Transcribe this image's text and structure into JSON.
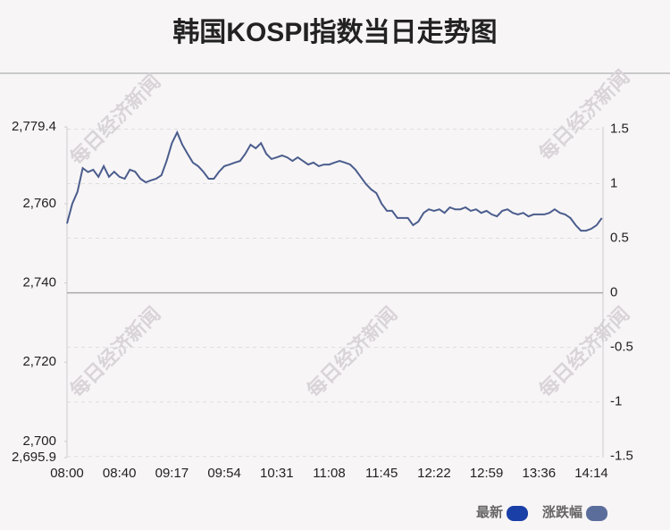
{
  "chart_data": {
    "type": "line",
    "title": "韩国KOSPI指数当日走势图",
    "watermark": "每日经济新闻",
    "categories": [
      "08:00",
      null,
      null,
      null,
      null,
      null,
      null,
      null,
      null,
      null,
      "08:40",
      null,
      null,
      null,
      null,
      null,
      null,
      null,
      null,
      null,
      "09:17",
      null,
      null,
      null,
      null,
      null,
      null,
      null,
      null,
      null,
      "09:54",
      null,
      null,
      null,
      null,
      null,
      null,
      null,
      null,
      null,
      "10:31",
      null,
      null,
      null,
      null,
      null,
      null,
      null,
      null,
      null,
      "11:08",
      null,
      null,
      null,
      null,
      null,
      null,
      null,
      null,
      null,
      "11:45",
      null,
      null,
      null,
      null,
      null,
      null,
      null,
      null,
      null,
      "12:22",
      null,
      null,
      null,
      null,
      null,
      null,
      null,
      null,
      null,
      "12:59",
      null,
      null,
      null,
      null,
      null,
      null,
      null,
      null,
      null,
      "13:36",
      null,
      null,
      null,
      null,
      null,
      null,
      null,
      null,
      null,
      "14:14",
      null,
      null
    ],
    "series": [
      {
        "color": "#4a5d8c",
        "values": [
          2755.0,
          2760.0,
          2763.0,
          2769.0,
          2768.0,
          2768.6,
          2766.8,
          2769.5,
          2766.8,
          2768.1,
          2766.8,
          2766.3,
          2768.6,
          2768.1,
          2766.3,
          2765.4,
          2765.9,
          2766.3,
          2767.2,
          2770.8,
          2775.3,
          2778.0,
          2774.9,
          2772.6,
          2770.4,
          2769.5,
          2768.1,
          2766.3,
          2766.3,
          2768.1,
          2769.5,
          2769.9,
          2770.4,
          2770.8,
          2772.6,
          2774.9,
          2774.0,
          2775.3,
          2772.6,
          2771.3,
          2771.7,
          2772.2,
          2771.7,
          2770.8,
          2771.7,
          2770.8,
          2769.9,
          2770.4,
          2769.5,
          2769.9,
          2769.9,
          2770.4,
          2770.8,
          2770.4,
          2769.9,
          2768.6,
          2766.8,
          2765.0,
          2763.6,
          2762.7,
          2760.0,
          2758.2,
          2758.2,
          2756.4,
          2756.4,
          2756.4,
          2754.6,
          2755.5,
          2757.7,
          2758.6,
          2758.2,
          2758.6,
          2757.7,
          2759.1,
          2758.6,
          2758.6,
          2759.1,
          2758.2,
          2758.6,
          2757.7,
          2758.2,
          2757.3,
          2756.8,
          2758.2,
          2758.6,
          2757.7,
          2757.3,
          2757.7,
          2756.8,
          2757.3,
          2757.3,
          2757.3,
          2757.7,
          2758.6,
          2757.7,
          2757.3,
          2756.4,
          2754.6,
          2753.2,
          2753.2,
          2753.7,
          2754.6,
          2756.4
        ]
      }
    ],
    "ylim": [
      2695.9,
      2779.4
    ],
    "yticks": [
      {
        "value": 2695.9,
        "label": "2,695.9"
      },
      {
        "value": 2700,
        "label": "2,700"
      },
      {
        "value": 2720,
        "label": "2,720"
      },
      {
        "value": 2740,
        "label": "2,740"
      },
      {
        "value": 2760,
        "label": "2,760"
      },
      {
        "value": 2779.4,
        "label": "2,779.4"
      }
    ],
    "y2lim": [
      -1.51,
      1.52
    ],
    "y2ticks": [
      -1.5,
      -1,
      -0.5,
      0,
      0.5,
      1,
      1.5
    ],
    "grid": true,
    "legend": [
      {
        "name": "最新",
        "color": "#1a3fa6"
      },
      {
        "name": "涨跌幅",
        "color": "#5b6e9b"
      }
    ]
  }
}
